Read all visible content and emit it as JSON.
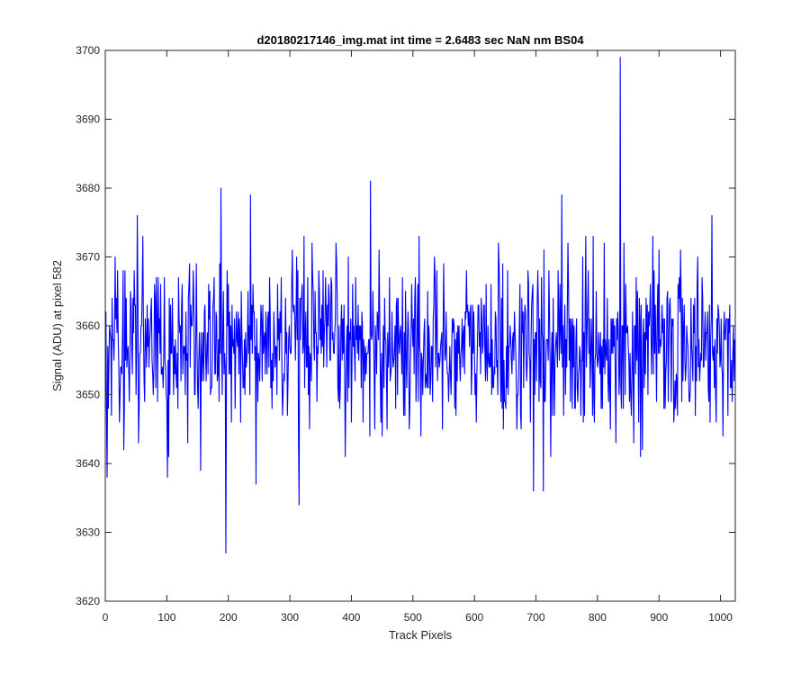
{
  "chart_data": {
    "type": "line",
    "title": "d20180217146_img.mat int time = 2.6483 sec  NaN nm BS04",
    "xlabel": "Track Pixels",
    "ylabel": "Signal (ADU) at pixel 582",
    "xlim": [
      0,
      1024
    ],
    "ylim": [
      3620,
      3700
    ],
    "xticks": [
      0,
      100,
      200,
      300,
      400,
      500,
      600,
      700,
      800,
      900,
      1000
    ],
    "yticks": [
      3620,
      3630,
      3640,
      3650,
      3660,
      3670,
      3680,
      3690,
      3700
    ],
    "grid": false,
    "legend": "none",
    "series": [
      {
        "color": "#0000ff",
        "n_points": 1024,
        "baseline": 3657,
        "noise_amplitude": 6,
        "notable_points": [
          {
            "x": 3,
            "y": 3638
          },
          {
            "x": 52,
            "y": 3676
          },
          {
            "x": 101,
            "y": 3638
          },
          {
            "x": 155,
            "y": 3639
          },
          {
            "x": 188,
            "y": 3680
          },
          {
            "x": 196,
            "y": 3627
          },
          {
            "x": 236,
            "y": 3679
          },
          {
            "x": 245,
            "y": 3637
          },
          {
            "x": 315,
            "y": 3634
          },
          {
            "x": 431,
            "y": 3681
          },
          {
            "x": 696,
            "y": 3636
          },
          {
            "x": 712,
            "y": 3636
          },
          {
            "x": 742,
            "y": 3679
          },
          {
            "x": 837,
            "y": 3699
          },
          {
            "x": 986,
            "y": 3676
          },
          {
            "x": 1004,
            "y": 3644
          }
        ]
      }
    ]
  },
  "colors": {
    "series": "#0000ff",
    "axes": "#262626",
    "background": "#ffffff"
  }
}
